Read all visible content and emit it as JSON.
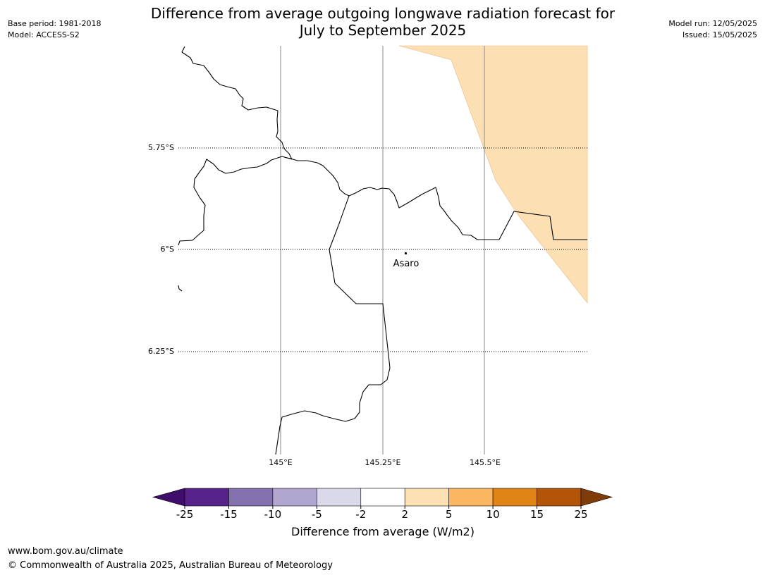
{
  "header": {
    "title_line1": "Difference from average outgoing longwave radiation forecast for",
    "title_line2": "July to September 2025",
    "base_period": "Base period: 1981-2018",
    "model": "Model: ACCESS-S2",
    "model_run": "Model run: 12/05/2025",
    "issued": "Issued: 15/05/2025"
  },
  "map": {
    "lat_labels": [
      "5.75°S",
      "6°S",
      "6.25°S"
    ],
    "lon_labels": [
      "145°E",
      "145.25°E",
      "145.5°E"
    ],
    "place_label": "Asaro",
    "anomaly_fill_color": "#fce0b4",
    "coast_color": "#000000"
  },
  "legend": {
    "label": "Difference from average (W/m2)",
    "ticks": [
      "-25",
      "-15",
      "-10",
      "-5",
      "-2",
      "2",
      "5",
      "10",
      "15",
      "25"
    ],
    "colors": [
      "#3f0d6a",
      "#57228a",
      "#8370ae",
      "#b1a6d0",
      "#d9d9ea",
      "#ffffff",
      "#fee0b5",
      "#fab660",
      "#e08513",
      "#b35508",
      "#7f3b08"
    ]
  },
  "footer": {
    "url": "www.bom.gov.au/climate",
    "copyright": "© Commonwealth of Australia 2025, Australian Bureau of Meteorology"
  }
}
